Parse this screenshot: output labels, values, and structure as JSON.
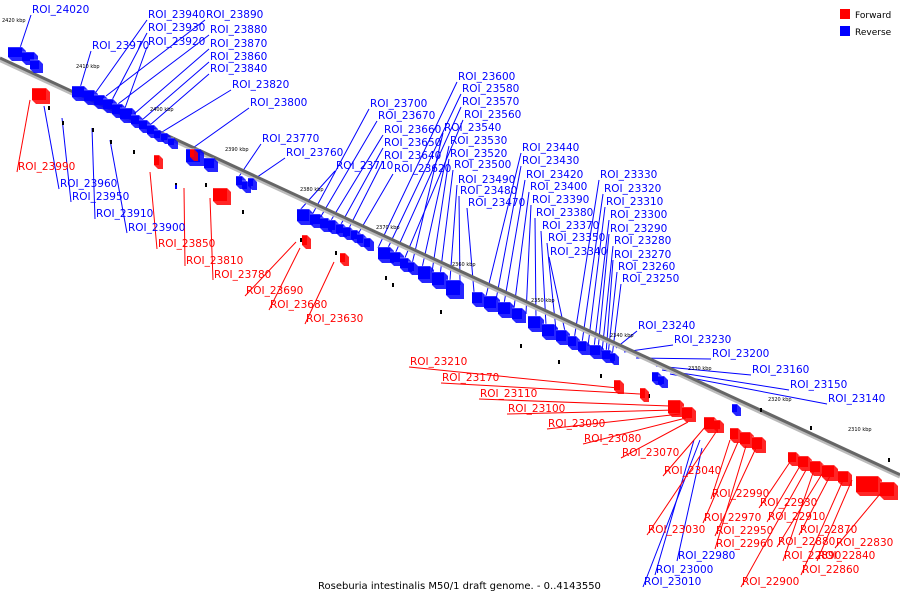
{
  "caption": "Roseburia intestinalis M50/1 draft genome. - 0..4143550",
  "legend": [
    {
      "label": "Forward",
      "color": "#ff0000"
    },
    {
      "label": "Reverse",
      "color": "#0000ff"
    }
  ],
  "scale_ticks": [
    "2420 kbp",
    "2410 kbp",
    "2400 kbp",
    "2390 kbp",
    "2380 kbp",
    "2370 kbp",
    "2360 kbp",
    "2350 kbp",
    "2340 kbp",
    "2330 kbp",
    "2320 kbp",
    "2310 kbp"
  ],
  "genes_forward": [
    "ROI_23990",
    "ROI_23850",
    "ROI_23810",
    "ROI_23780",
    "ROI_23690",
    "ROI_23680",
    "ROI_23630",
    "ROI_23210",
    "ROI_23170",
    "ROI_23110",
    "ROI_23100",
    "ROI_23090",
    "ROI_23080",
    "ROI_23070",
    "ROI_23040",
    "ROI_23030",
    "ROI_22990",
    "ROI_22970",
    "ROI_22960",
    "ROI_22950",
    "ROI_22930",
    "ROI_22910",
    "ROI_22890",
    "ROI_22880",
    "ROI_22870",
    "ROI_22860",
    "ROI_22840",
    "ROI_22830",
    "ROI_22900"
  ],
  "genes_reverse": [
    "ROI_24020",
    "ROI_23970",
    "ROI_23940",
    "ROI_23930",
    "ROI_23920",
    "ROI_23890",
    "ROI_23880",
    "ROI_23870",
    "ROI_23860",
    "ROI_23840",
    "ROI_23820",
    "ROI_23800",
    "ROI_23770",
    "ROI_23760",
    "ROI_23710",
    "ROI_23700",
    "ROI_23670",
    "ROI_23660",
    "ROI_23650",
    "ROI_23640",
    "ROI_23620",
    "ROI_23600",
    "ROI_23580",
    "ROI_23570",
    "ROI_23560",
    "ROI_23540",
    "ROI_23530",
    "ROI_23520",
    "ROI_23500",
    "ROI_23490",
    "ROI_23480",
    "ROI_23470",
    "ROI_23440",
    "ROI_23430",
    "ROI_23420",
    "ROI_23400",
    "ROI_23390",
    "ROI_23380",
    "ROI_23370",
    "ROI_23350",
    "ROI_23340",
    "ROI_23330",
    "ROI_23320",
    "ROI_23310",
    "ROI_23300",
    "ROI_23290",
    "ROI_23280",
    "ROI_23270",
    "ROI_23260",
    "ROI_23250",
    "ROI_23240",
    "ROI_23230",
    "ROI_23200",
    "ROI_23160",
    "ROI_23150",
    "ROI_23140",
    "ROI_23960",
    "ROI_23950",
    "ROI_23910",
    "ROI_23900",
    "ROI_22980",
    "ROI_23000",
    "ROI_23010"
  ]
}
